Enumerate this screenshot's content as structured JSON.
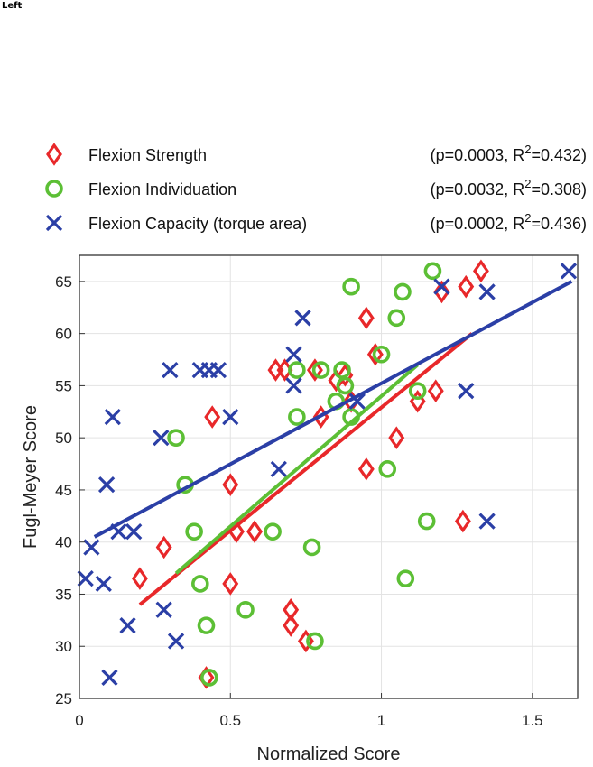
{
  "corner_label": "Left",
  "chart_data": {
    "type": "scatter",
    "xlabel": "Normalized Score",
    "ylabel": "Fugl-Meyer Score",
    "xlim": [
      0,
      1.65
    ],
    "ylim": [
      25,
      67.5
    ],
    "xticks": [
      0,
      0.5,
      1,
      1.5
    ],
    "xtick_labels": [
      "0",
      "0.5",
      "1",
      "1.5"
    ],
    "yticks": [
      25,
      30,
      35,
      40,
      45,
      50,
      55,
      60,
      65
    ],
    "ytick_labels": [
      "25",
      "30",
      "35",
      "40",
      "45",
      "50",
      "55",
      "60",
      "65"
    ],
    "grid": true,
    "legend_placement": "top",
    "series": [
      {
        "name": "Flexion Strength",
        "stat_prefix": "(p=0.0003, R",
        "stat_suffix": "=0.432)",
        "stat_sup": "2",
        "marker": "diamond",
        "color": "#e8282a",
        "fit": [
          [
            0.2,
            34
          ],
          [
            1.3,
            60
          ]
        ],
        "points": [
          [
            0.2,
            36.5
          ],
          [
            0.28,
            39.5
          ],
          [
            0.42,
            27
          ],
          [
            0.44,
            52
          ],
          [
            0.5,
            45.5
          ],
          [
            0.5,
            36
          ],
          [
            0.52,
            41
          ],
          [
            0.58,
            41
          ],
          [
            0.65,
            56.5
          ],
          [
            0.68,
            56.5
          ],
          [
            0.7,
            33.5
          ],
          [
            0.7,
            32
          ],
          [
            0.75,
            30.5
          ],
          [
            0.78,
            56.5
          ],
          [
            0.8,
            52
          ],
          [
            0.85,
            55.5
          ],
          [
            0.88,
            56
          ],
          [
            0.9,
            53.5
          ],
          [
            0.95,
            61.5
          ],
          [
            0.95,
            47
          ],
          [
            0.98,
            58
          ],
          [
            1.05,
            50
          ],
          [
            1.12,
            53.5
          ],
          [
            1.18,
            54.5
          ],
          [
            1.2,
            64
          ],
          [
            1.27,
            42
          ],
          [
            1.28,
            64.5
          ],
          [
            1.33,
            66
          ]
        ]
      },
      {
        "name": "Flexion Individuation",
        "stat_prefix": "(p=0.0032, R",
        "stat_suffix": "=0.308)",
        "stat_sup": "2",
        "marker": "circle",
        "color": "#5cbf35",
        "fit": [
          [
            0.32,
            37
          ],
          [
            1.12,
            57
          ]
        ],
        "points": [
          [
            0.32,
            50
          ],
          [
            0.35,
            45.5
          ],
          [
            0.38,
            41
          ],
          [
            0.4,
            36
          ],
          [
            0.42,
            32
          ],
          [
            0.43,
            27
          ],
          [
            0.55,
            33.5
          ],
          [
            0.64,
            41
          ],
          [
            0.72,
            52
          ],
          [
            0.72,
            56.5
          ],
          [
            0.77,
            39.5
          ],
          [
            0.78,
            30.5
          ],
          [
            0.8,
            56.5
          ],
          [
            0.85,
            53.5
          ],
          [
            0.87,
            56.5
          ],
          [
            0.88,
            55
          ],
          [
            0.9,
            64.5
          ],
          [
            0.9,
            52
          ],
          [
            1.0,
            58
          ],
          [
            1.02,
            47
          ],
          [
            1.05,
            61.5
          ],
          [
            1.07,
            64
          ],
          [
            1.08,
            36.5
          ],
          [
            1.12,
            54.5
          ],
          [
            1.15,
            42
          ],
          [
            1.17,
            66
          ]
        ]
      },
      {
        "name": "Flexion Capacity (torque area)",
        "stat_prefix": "(p=0.0002, R",
        "stat_suffix": "=0.436)",
        "stat_sup": "2",
        "marker": "x",
        "color": "#2b3fa6",
        "fit": [
          [
            0.05,
            40.5
          ],
          [
            1.63,
            65
          ]
        ],
        "points": [
          [
            0.02,
            36.5
          ],
          [
            0.04,
            39.5
          ],
          [
            0.08,
            36
          ],
          [
            0.09,
            45.5
          ],
          [
            0.1,
            27
          ],
          [
            0.11,
            52
          ],
          [
            0.13,
            41
          ],
          [
            0.16,
            32
          ],
          [
            0.18,
            41
          ],
          [
            0.27,
            50
          ],
          [
            0.28,
            33.5
          ],
          [
            0.3,
            56.5
          ],
          [
            0.32,
            30.5
          ],
          [
            0.4,
            56.5
          ],
          [
            0.43,
            56.5
          ],
          [
            0.46,
            56.5
          ],
          [
            0.5,
            52
          ],
          [
            0.66,
            47
          ],
          [
            0.71,
            55
          ],
          [
            0.71,
            58
          ],
          [
            0.74,
            61.5
          ],
          [
            0.92,
            53.5
          ],
          [
            1.2,
            64.5
          ],
          [
            1.28,
            54.5
          ],
          [
            1.35,
            42
          ],
          [
            1.35,
            64
          ],
          [
            1.62,
            66
          ]
        ]
      }
    ]
  }
}
